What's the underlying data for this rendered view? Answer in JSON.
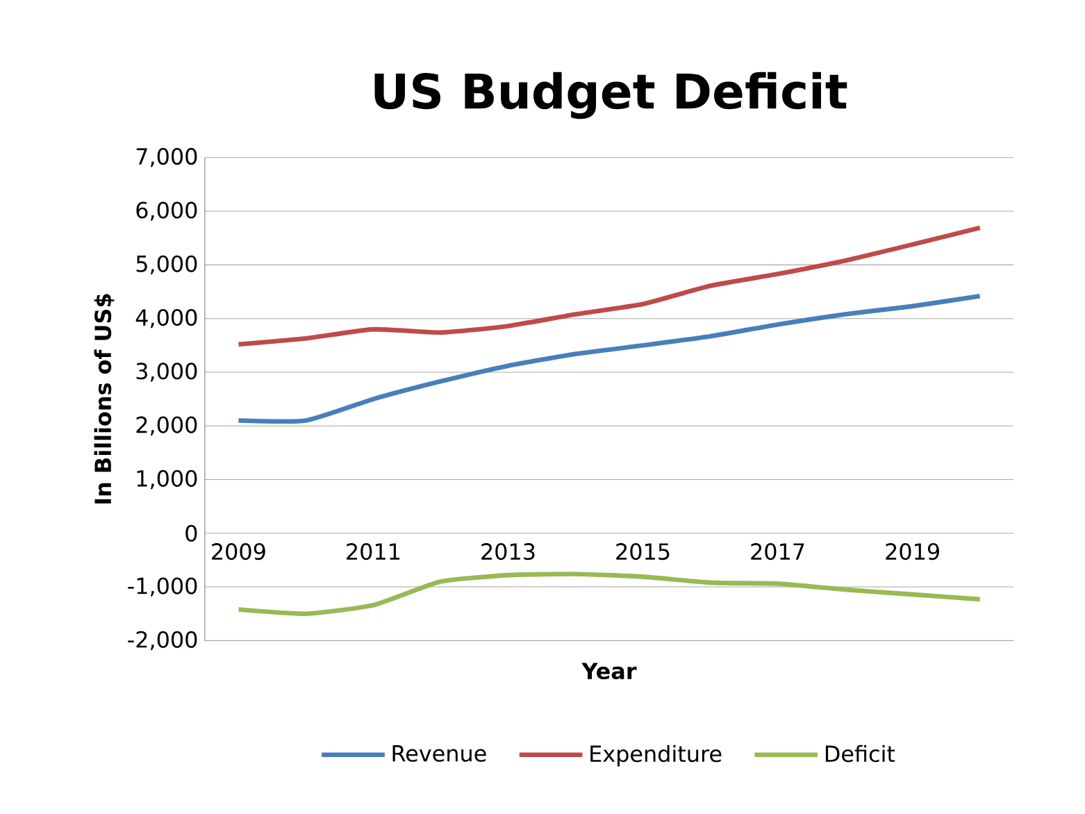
{
  "chart_data": {
    "type": "line",
    "title": "US Budget Deficit",
    "xlabel": "Year",
    "ylabel": "In Billions of US$",
    "categories": [
      "2009",
      null,
      "2011",
      null,
      "2013",
      null,
      "2015",
      null,
      "2017",
      null,
      "2019",
      null
    ],
    "series": [
      {
        "name": "Revenue",
        "color": "#4a7ebb",
        "values": [
          2100,
          2100,
          2500,
          2830,
          3120,
          3340,
          3500,
          3670,
          3890,
          4080,
          4230,
          4420
        ]
      },
      {
        "name": "Expenditure",
        "color": "#be4b48",
        "values": [
          3520,
          3630,
          3800,
          3740,
          3860,
          4080,
          4270,
          4610,
          4830,
          5080,
          5380,
          5690
        ]
      },
      {
        "name": "Deficit",
        "color": "#98b954",
        "values": [
          -1420,
          -1500,
          -1340,
          -900,
          -780,
          -760,
          -810,
          -920,
          -940,
          -1050,
          -1140,
          -1230
        ]
      }
    ],
    "ylim": [
      -2000,
      7000
    ],
    "yticks": [
      {
        "value": -2000,
        "label": "-2,000"
      },
      {
        "value": -1000,
        "label": "-1,000"
      },
      0,
      {
        "value": 1000,
        "label": "1,000"
      },
      {
        "value": 2000,
        "label": "2,000"
      },
      {
        "value": 3000,
        "label": "3,000"
      },
      {
        "value": 4000,
        "label": "4,000"
      },
      {
        "value": 5000,
        "label": "5,000"
      },
      {
        "value": 6000,
        "label": "6,000"
      },
      {
        "value": 7000,
        "label": "7,000"
      }
    ],
    "grid": "y",
    "legend": "bottom",
    "marker": "none",
    "line_style": "solid"
  }
}
